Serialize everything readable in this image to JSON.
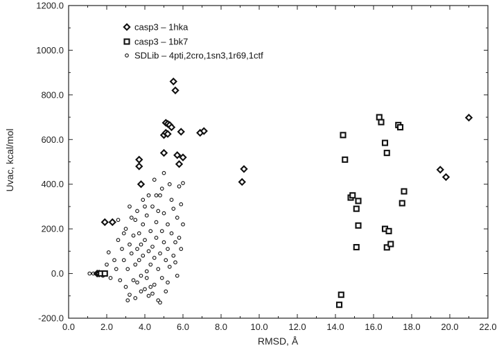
{
  "chart_data": {
    "type": "scatter",
    "xlabel": "RMSD, Å",
    "ylabel": "Uvac, kcal/mol",
    "xlim": [
      0,
      22
    ],
    "ylim": [
      -200,
      1200
    ],
    "x_ticks": [
      "0.0",
      "2.0",
      "4.0",
      "6.0",
      "8.0",
      "10.0",
      "12.0",
      "14.0",
      "16.0",
      "18.0",
      "20.0",
      "22.0"
    ],
    "y_ticks": [
      "-200.0",
      "0.0",
      "200.0",
      "400.0",
      "600.0",
      "800.0",
      "1000.0",
      "1200.0"
    ],
    "grid": false,
    "legend_position": "top-left",
    "series": [
      {
        "name": "casp3 – 1hka",
        "marker": "diamond",
        "points": [
          [
            1.5,
            0
          ],
          [
            1.6,
            0
          ],
          [
            1.9,
            230
          ],
          [
            2.3,
            230
          ],
          [
            3.7,
            510
          ],
          [
            3.7,
            480
          ],
          [
            3.8,
            400
          ],
          [
            5.0,
            540
          ],
          [
            5.0,
            620
          ],
          [
            5.1,
            630
          ],
          [
            5.1,
            675
          ],
          [
            5.2,
            670
          ],
          [
            5.3,
            665
          ],
          [
            5.4,
            655
          ],
          [
            5.2,
            625
          ],
          [
            5.5,
            860
          ],
          [
            5.6,
            820
          ],
          [
            5.7,
            530
          ],
          [
            5.8,
            490
          ],
          [
            5.9,
            635
          ],
          [
            6.0,
            520
          ],
          [
            6.9,
            630
          ],
          [
            7.1,
            638
          ],
          [
            9.1,
            410
          ],
          [
            9.2,
            468
          ],
          [
            19.5,
            465
          ],
          [
            19.8,
            432
          ],
          [
            21.0,
            698
          ]
        ]
      },
      {
        "name": "casp3 – 1bk7",
        "marker": "square",
        "points": [
          [
            1.7,
            0
          ],
          [
            1.9,
            0
          ],
          [
            14.2,
            -140
          ],
          [
            14.3,
            -95
          ],
          [
            14.4,
            620
          ],
          [
            14.5,
            510
          ],
          [
            14.8,
            340
          ],
          [
            14.9,
            350
          ],
          [
            15.1,
            290
          ],
          [
            15.2,
            325
          ],
          [
            15.2,
            215
          ],
          [
            15.1,
            118
          ],
          [
            16.3,
            700
          ],
          [
            16.4,
            678
          ],
          [
            16.6,
            585
          ],
          [
            16.7,
            540
          ],
          [
            16.6,
            200
          ],
          [
            16.8,
            190
          ],
          [
            16.7,
            117
          ],
          [
            16.9,
            132
          ],
          [
            17.3,
            665
          ],
          [
            17.4,
            655
          ],
          [
            17.5,
            315
          ],
          [
            17.6,
            368
          ]
        ]
      },
      {
        "name": "SDLib – 4pti,2cro,1sn3,1r69,1ctf",
        "marker": "circle",
        "points": [
          [
            1.1,
            0
          ],
          [
            1.3,
            0
          ],
          [
            1.6,
            5
          ],
          [
            1.8,
            -10
          ],
          [
            2.0,
            40
          ],
          [
            2.1,
            95
          ],
          [
            2.2,
            -20
          ],
          [
            2.4,
            60
          ],
          [
            2.5,
            20
          ],
          [
            2.6,
            150
          ],
          [
            2.7,
            -30
          ],
          [
            2.8,
            110
          ],
          [
            2.9,
            60
          ],
          [
            3.0,
            200
          ],
          [
            3.0,
            -60
          ],
          [
            3.1,
            20
          ],
          [
            3.2,
            130
          ],
          [
            3.2,
            -95
          ],
          [
            3.3,
            90
          ],
          [
            3.4,
            170
          ],
          [
            3.4,
            -30
          ],
          [
            3.5,
            40
          ],
          [
            3.5,
            240
          ],
          [
            3.6,
            110
          ],
          [
            3.6,
            -40
          ],
          [
            3.7,
            180
          ],
          [
            3.7,
            60
          ],
          [
            3.8,
            130
          ],
          [
            3.8,
            -10
          ],
          [
            3.9,
            220
          ],
          [
            3.9,
            80
          ],
          [
            4.0,
            150
          ],
          [
            4.0,
            -70
          ],
          [
            4.1,
            10
          ],
          [
            4.1,
            260
          ],
          [
            4.2,
            100
          ],
          [
            4.2,
            -100
          ],
          [
            4.3,
            190
          ],
          [
            4.3,
            40
          ],
          [
            4.4,
            300
          ],
          [
            4.4,
            120
          ],
          [
            4.5,
            -50
          ],
          [
            4.5,
            70
          ],
          [
            4.6,
            230
          ],
          [
            4.6,
            160
          ],
          [
            4.7,
            -120
          ],
          [
            4.7,
            20
          ],
          [
            4.8,
            350
          ],
          [
            4.8,
            90
          ],
          [
            4.9,
            190
          ],
          [
            4.9,
            -20
          ],
          [
            5.0,
            270
          ],
          [
            5.0,
            140
          ],
          [
            5.1,
            60
          ],
          [
            5.1,
            -80
          ],
          [
            5.2,
            220
          ],
          [
            5.2,
            110
          ],
          [
            5.3,
            400
          ],
          [
            5.3,
            30
          ],
          [
            5.4,
            180
          ],
          [
            5.5,
            290
          ],
          [
            5.5,
            80
          ],
          [
            5.6,
            140
          ],
          [
            5.7,
            -10
          ],
          [
            5.7,
            250
          ],
          [
            5.8,
            390
          ],
          [
            5.8,
            160
          ],
          [
            5.9,
            110
          ],
          [
            6.0,
            220
          ],
          [
            6.0,
            405
          ],
          [
            3.3,
            250
          ],
          [
            3.5,
            -110
          ],
          [
            3.9,
            330
          ],
          [
            4.1,
            -20
          ],
          [
            4.4,
            -90
          ],
          [
            4.6,
            350
          ],
          [
            4.8,
            -130
          ],
          [
            5.0,
            450
          ],
          [
            2.9,
            180
          ],
          [
            3.1,
            -120
          ],
          [
            3.6,
            280
          ],
          [
            4.0,
            300
          ],
          [
            4.3,
            -60
          ],
          [
            4.7,
            280
          ],
          [
            5.2,
            -40
          ],
          [
            5.4,
            330
          ],
          [
            2.6,
            240
          ],
          [
            3.2,
            300
          ],
          [
            4.5,
            420
          ],
          [
            5.6,
            50
          ],
          [
            5.9,
            310
          ],
          [
            4.9,
            380
          ],
          [
            3.8,
            -80
          ],
          [
            4.2,
            350
          ]
        ]
      }
    ]
  }
}
